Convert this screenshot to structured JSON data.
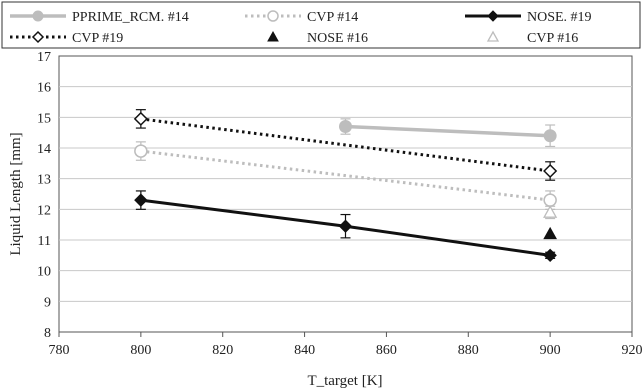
{
  "chart_data": {
    "type": "line",
    "xlabel": "T_target [K]",
    "ylabel": "Liquid Length [mm]",
    "xlim": [
      780,
      920
    ],
    "ylim": [
      8,
      17
    ],
    "xticks": [
      780,
      800,
      820,
      840,
      860,
      880,
      900,
      920
    ],
    "yticks": [
      8,
      9,
      10,
      11,
      12,
      13,
      14,
      15,
      16,
      17
    ],
    "grid": "horizontal",
    "legend_position": "top",
    "series": [
      {
        "name": "PPRIME_RCM. #14",
        "style": "solid-thick",
        "marker": "filled-circle",
        "color": "#bdbdbd",
        "x": [
          850,
          900
        ],
        "y": [
          14.7,
          14.4
        ],
        "err": [
          0.25,
          0.35
        ]
      },
      {
        "name": "CVP  #14",
        "style": "dotted",
        "marker": "open-circle",
        "color": "#bdbdbd",
        "x": [
          800,
          900
        ],
        "y": [
          13.9,
          12.3
        ],
        "err": [
          0.3,
          0.3
        ]
      },
      {
        "name": "NOSE. #19",
        "style": "solid",
        "marker": "filled-diamond",
        "color": "#111111",
        "x": [
          800,
          850,
          900
        ],
        "y": [
          12.3,
          11.45,
          10.5
        ],
        "err": [
          0.3,
          0.38,
          0.1
        ]
      },
      {
        "name": "CVP #19",
        "style": "dotted",
        "marker": "open-diamond",
        "color": "#111111",
        "x": [
          800,
          900
        ],
        "y": [
          14.95,
          13.25
        ],
        "err": [
          0.3,
          0.3
        ]
      },
      {
        "name": "NOSE #16",
        "style": "none",
        "marker": "filled-triangle",
        "color": "#111111",
        "x": [
          900
        ],
        "y": [
          11.2
        ],
        "err": [
          0
        ]
      },
      {
        "name": "CVP #16",
        "style": "none",
        "marker": "open-triangle",
        "color": "#bdbdbd",
        "x": [
          900
        ],
        "y": [
          11.9
        ],
        "err": [
          0.2
        ]
      }
    ]
  }
}
